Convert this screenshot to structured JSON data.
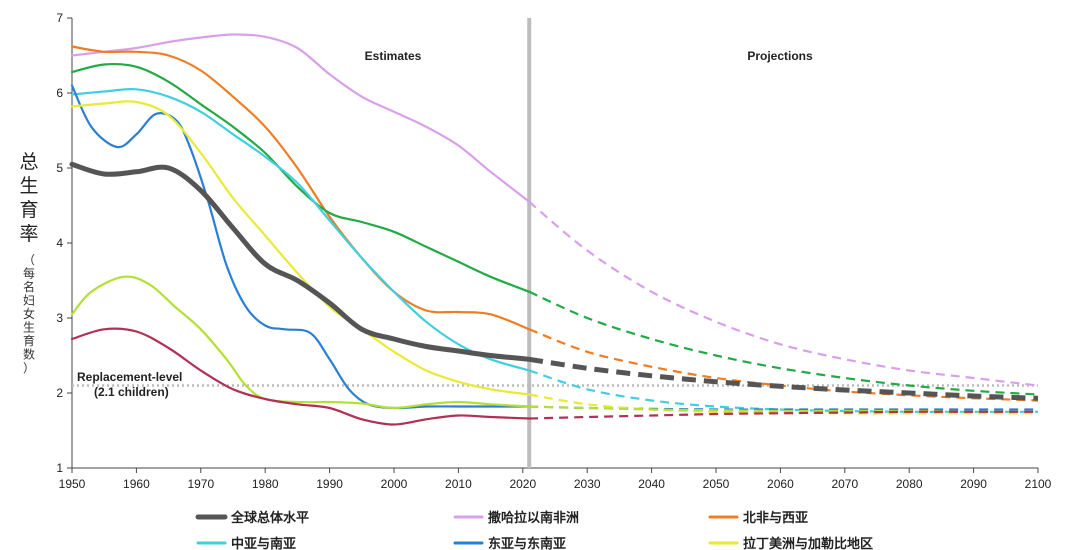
{
  "chart_data": {
    "type": "line",
    "title": "",
    "xlabel": "",
    "ylabel": "总生育率",
    "ylabel_sub": "（每名妇女生育数）",
    "xlim": [
      1950,
      2100
    ],
    "ylim": [
      1,
      7
    ],
    "x_ticks": [
      1950,
      1960,
      1970,
      1980,
      1990,
      2000,
      2010,
      2020,
      2030,
      2040,
      2050,
      2060,
      2070,
      2080,
      2090,
      2100
    ],
    "y_ticks": [
      1,
      2,
      3,
      4,
      5,
      6,
      7
    ],
    "divider_year": 2021,
    "estimates_label": "Estimates",
    "projections_label": "Projections",
    "replacement": {
      "value": 2.1,
      "label_line1": "Replacement-level",
      "label_line2": "(2.1 children)",
      "color": "#bbbbbb"
    },
    "legend_position": "bottom",
    "series": [
      {
        "name": "撒哈拉以南非洲",
        "color": "#d9a0ea",
        "width": 2.2,
        "x": [
          1950,
          1955,
          1960,
          1965,
          1970,
          1975,
          1980,
          1985,
          1990,
          1995,
          2000,
          2005,
          2010,
          2015,
          2021
        ],
        "y": [
          6.5,
          6.55,
          6.6,
          6.68,
          6.74,
          6.78,
          6.75,
          6.6,
          6.25,
          5.95,
          5.75,
          5.55,
          5.3,
          4.95,
          4.55
        ],
        "proj_x": [
          2021,
          2030,
          2040,
          2050,
          2060,
          2070,
          2080,
          2090,
          2100
        ],
        "proj_y": [
          4.55,
          3.9,
          3.35,
          2.95,
          2.65,
          2.45,
          2.3,
          2.2,
          2.1
        ]
      },
      {
        "name": "北非与西亚",
        "color": "#f07d22",
        "width": 2.2,
        "x": [
          1950,
          1955,
          1960,
          1965,
          1970,
          1975,
          1980,
          1985,
          1990,
          1995,
          2000,
          2005,
          2010,
          2015,
          2021
        ],
        "y": [
          6.62,
          6.55,
          6.55,
          6.5,
          6.3,
          5.95,
          5.55,
          5.0,
          4.35,
          3.8,
          3.35,
          3.1,
          3.08,
          3.05,
          2.85
        ],
        "proj_x": [
          2021,
          2030,
          2040,
          2050,
          2060,
          2070,
          2080,
          2090,
          2100
        ],
        "proj_y": [
          2.85,
          2.55,
          2.35,
          2.2,
          2.1,
          2.02,
          1.97,
          1.93,
          1.9
        ]
      },
      {
        "name": "",
        "color": "#22aa44",
        "width": 2.2,
        "x": [
          1950,
          1955,
          1960,
          1965,
          1970,
          1975,
          1980,
          1985,
          1990,
          1995,
          2000,
          2005,
          2010,
          2015,
          2021
        ],
        "y": [
          6.28,
          6.38,
          6.35,
          6.15,
          5.85,
          5.55,
          5.2,
          4.75,
          4.4,
          4.28,
          4.15,
          3.95,
          3.75,
          3.55,
          3.35
        ],
        "proj_x": [
          2021,
          2030,
          2040,
          2050,
          2060,
          2070,
          2080,
          2090,
          2100
        ],
        "proj_y": [
          3.35,
          3.0,
          2.72,
          2.5,
          2.33,
          2.2,
          2.1,
          2.03,
          1.98
        ]
      },
      {
        "name": "中亚与南亚",
        "color": "#3fcfdf",
        "width": 2.2,
        "x": [
          1950,
          1955,
          1960,
          1965,
          1970,
          1975,
          1980,
          1985,
          1990,
          1995,
          2000,
          2005,
          2010,
          2015,
          2021
        ],
        "y": [
          5.98,
          6.02,
          6.05,
          5.95,
          5.75,
          5.45,
          5.15,
          4.8,
          4.3,
          3.8,
          3.35,
          2.95,
          2.65,
          2.45,
          2.3
        ],
        "proj_x": [
          2021,
          2030,
          2040,
          2050,
          2060,
          2070,
          2080,
          2090,
          2100
        ],
        "proj_y": [
          2.3,
          2.05,
          1.9,
          1.82,
          1.78,
          1.76,
          1.75,
          1.75,
          1.75
        ]
      },
      {
        "name": "东亚与东南亚",
        "color": "#2a7fd4",
        "width": 2.2,
        "x": [
          1950,
          1953,
          1957,
          1960,
          1963,
          1966,
          1968,
          1971,
          1974,
          1977,
          1980,
          1983,
          1987,
          1990,
          1993,
          1996,
          2000,
          2005,
          2010,
          2015,
          2021
        ],
        "y": [
          6.1,
          5.55,
          5.28,
          5.45,
          5.72,
          5.65,
          5.35,
          4.6,
          3.7,
          3.15,
          2.9,
          2.85,
          2.8,
          2.45,
          2.05,
          1.85,
          1.8,
          1.82,
          1.82,
          1.82,
          1.82
        ],
        "proj_x": [
          2021,
          2030,
          2040,
          2050,
          2060,
          2070,
          2080,
          2090,
          2100
        ],
        "proj_y": [
          1.82,
          1.8,
          1.79,
          1.78,
          1.78,
          1.78,
          1.78,
          1.78,
          1.78
        ]
      },
      {
        "name": "拉丁美洲与加勒比地区",
        "color": "#e8ea33",
        "width": 2.2,
        "x": [
          1950,
          1955,
          1960,
          1965,
          1970,
          1975,
          1980,
          1985,
          1990,
          1995,
          2000,
          2005,
          2010,
          2015,
          2021
        ],
        "y": [
          5.82,
          5.86,
          5.88,
          5.7,
          5.2,
          4.6,
          4.1,
          3.6,
          3.15,
          2.85,
          2.55,
          2.3,
          2.15,
          2.05,
          1.98
        ],
        "proj_x": [
          2021,
          2030,
          2040,
          2050,
          2060,
          2070,
          2080,
          2090,
          2100
        ],
        "proj_y": [
          1.98,
          1.85,
          1.78,
          1.75,
          1.74,
          1.73,
          1.73,
          1.73,
          1.73
        ]
      },
      {
        "name": "",
        "color": "#b3e033",
        "width": 2.2,
        "x": [
          1950,
          1953,
          1958,
          1962,
          1966,
          1970,
          1974,
          1977,
          1980,
          1985,
          1990,
          1995,
          2000,
          2005,
          2010,
          2015,
          2021
        ],
        "y": [
          3.05,
          3.35,
          3.55,
          3.45,
          3.15,
          2.85,
          2.45,
          2.1,
          1.92,
          1.88,
          1.88,
          1.86,
          1.8,
          1.85,
          1.88,
          1.85,
          1.82
        ],
        "proj_x": [
          2021,
          2030,
          2040,
          2050,
          2060,
          2070,
          2080,
          2090,
          2100
        ],
        "proj_y": [
          1.82,
          1.8,
          1.78,
          1.77,
          1.76,
          1.76,
          1.76,
          1.75,
          1.75
        ]
      },
      {
        "name": "",
        "color": "#b23055",
        "width": 2.2,
        "x": [
          1950,
          1955,
          1960,
          1965,
          1970,
          1975,
          1980,
          1985,
          1990,
          1995,
          2000,
          2005,
          2010,
          2015,
          2021
        ],
        "y": [
          2.72,
          2.85,
          2.82,
          2.6,
          2.3,
          2.05,
          1.92,
          1.85,
          1.8,
          1.65,
          1.58,
          1.65,
          1.7,
          1.68,
          1.66
        ],
        "proj_x": [
          2021,
          2030,
          2040,
          2050,
          2060,
          2070,
          2080,
          2090,
          2100
        ],
        "proj_y": [
          1.66,
          1.68,
          1.7,
          1.72,
          1.73,
          1.74,
          1.75,
          1.75,
          1.75
        ]
      },
      {
        "name": "全球总体水平",
        "color": "#555555",
        "width": 5,
        "x": [
          1950,
          1955,
          1960,
          1965,
          1970,
          1975,
          1980,
          1985,
          1990,
          1995,
          2000,
          2005,
          2010,
          2015,
          2021
        ],
        "y": [
          5.05,
          4.92,
          4.95,
          5.0,
          4.7,
          4.2,
          3.72,
          3.5,
          3.2,
          2.85,
          2.72,
          2.62,
          2.56,
          2.5,
          2.45
        ],
        "proj_x": [
          2021,
          2030,
          2040,
          2050,
          2060,
          2070,
          2080,
          2090,
          2100
        ],
        "proj_y": [
          2.45,
          2.33,
          2.23,
          2.15,
          2.09,
          2.04,
          2.0,
          1.96,
          1.93
        ]
      }
    ],
    "legend": [
      {
        "label": "全球总体水平",
        "color": "#555555",
        "width": 5
      },
      {
        "label": "撒哈拉以南非洲",
        "color": "#d9a0ea",
        "width": 3
      },
      {
        "label": "北非与西亚",
        "color": "#f07d22",
        "width": 3
      },
      {
        "label": "中亚与南亚",
        "color": "#3fcfdf",
        "width": 3
      },
      {
        "label": "东亚与东南亚",
        "color": "#2a7fd4",
        "width": 3
      },
      {
        "label": "拉丁美洲与加勒比地区",
        "color": "#e8ea33",
        "width": 3
      }
    ]
  }
}
